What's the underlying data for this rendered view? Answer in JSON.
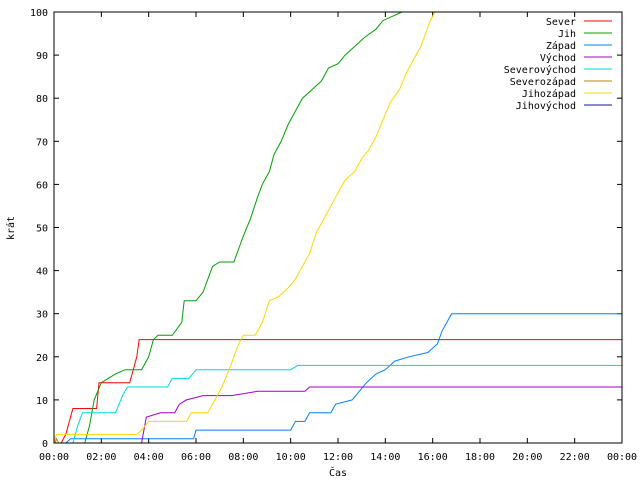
{
  "chart_data": {
    "type": "line",
    "title": "",
    "xlabel": "Čas",
    "ylabel": "krát",
    "xlim": [
      0,
      24
    ],
    "ylim": [
      0,
      100
    ],
    "x_ticks": [
      {
        "v": 0,
        "label": "00:00"
      },
      {
        "v": 2,
        "label": "02:00"
      },
      {
        "v": 4,
        "label": "04:00"
      },
      {
        "v": 6,
        "label": "06:00"
      },
      {
        "v": 8,
        "label": "08:00"
      },
      {
        "v": 10,
        "label": "10:00"
      },
      {
        "v": 12,
        "label": "12:00"
      },
      {
        "v": 14,
        "label": "14:00"
      },
      {
        "v": 16,
        "label": "16:00"
      },
      {
        "v": 18,
        "label": "18:00"
      },
      {
        "v": 20,
        "label": "20:00"
      },
      {
        "v": 22,
        "label": "22:00"
      },
      {
        "v": 24,
        "label": "00:00"
      }
    ],
    "y_ticks": [
      {
        "v": 0,
        "label": "0"
      },
      {
        "v": 10,
        "label": "10"
      },
      {
        "v": 20,
        "label": "20"
      },
      {
        "v": 30,
        "label": "30"
      },
      {
        "v": 40,
        "label": "40"
      },
      {
        "v": 50,
        "label": "50"
      },
      {
        "v": 60,
        "label": "60"
      },
      {
        "v": 70,
        "label": "70"
      },
      {
        "v": 80,
        "label": "80"
      },
      {
        "v": 90,
        "label": "90"
      },
      {
        "v": 100,
        "label": "100"
      }
    ],
    "grid": false,
    "legend_position": "top-right",
    "series": [
      {
        "name": "Sever",
        "color": "#ff0000",
        "points": [
          [
            0,
            0
          ],
          [
            0.3,
            0
          ],
          [
            0.5,
            2
          ],
          [
            0.8,
            8
          ],
          [
            1.8,
            8
          ],
          [
            1.9,
            14
          ],
          [
            3.2,
            14
          ],
          [
            3.5,
            20
          ],
          [
            3.6,
            24
          ],
          [
            24,
            24
          ]
        ]
      },
      {
        "name": "Jih",
        "color": "#00a000",
        "points": [
          [
            0,
            0
          ],
          [
            1.3,
            0
          ],
          [
            1.5,
            4
          ],
          [
            1.7,
            10
          ],
          [
            2.0,
            14
          ],
          [
            2.6,
            16
          ],
          [
            3.0,
            17
          ],
          [
            3.7,
            17
          ],
          [
            4.0,
            20
          ],
          [
            4.2,
            24
          ],
          [
            4.4,
            25
          ],
          [
            5.0,
            25
          ],
          [
            5.4,
            28
          ],
          [
            5.5,
            33
          ],
          [
            6.0,
            33
          ],
          [
            6.3,
            35
          ],
          [
            6.5,
            38
          ],
          [
            6.7,
            41
          ],
          [
            7.0,
            42
          ],
          [
            7.6,
            42
          ],
          [
            7.8,
            45
          ],
          [
            8.0,
            48
          ],
          [
            8.3,
            52
          ],
          [
            8.6,
            57
          ],
          [
            8.8,
            60
          ],
          [
            9.1,
            63
          ],
          [
            9.3,
            67
          ],
          [
            9.6,
            70
          ],
          [
            9.9,
            74
          ],
          [
            10.2,
            77
          ],
          [
            10.5,
            80
          ],
          [
            10.9,
            82
          ],
          [
            11.3,
            84
          ],
          [
            11.6,
            87
          ],
          [
            12.0,
            88
          ],
          [
            12.3,
            90
          ],
          [
            12.7,
            92
          ],
          [
            13.1,
            94
          ],
          [
            13.6,
            96
          ],
          [
            13.9,
            98
          ],
          [
            14.3,
            99
          ],
          [
            14.7,
            100
          ],
          [
            24,
            100
          ]
        ]
      },
      {
        "name": "Západ",
        "color": "#0080ff",
        "points": [
          [
            0,
            0
          ],
          [
            0.5,
            0
          ],
          [
            0.7,
            1
          ],
          [
            5.9,
            1
          ],
          [
            6.0,
            3
          ],
          [
            10.0,
            3
          ],
          [
            10.2,
            5
          ],
          [
            10.6,
            5
          ],
          [
            10.8,
            7
          ],
          [
            11.7,
            7
          ],
          [
            11.9,
            9
          ],
          [
            12.6,
            10
          ],
          [
            12.9,
            12
          ],
          [
            13.2,
            14
          ],
          [
            13.6,
            16
          ],
          [
            14.0,
            17
          ],
          [
            14.4,
            19
          ],
          [
            15.0,
            20
          ],
          [
            15.8,
            21
          ],
          [
            16.2,
            23
          ],
          [
            16.4,
            26
          ],
          [
            16.6,
            28
          ],
          [
            16.8,
            30
          ],
          [
            24,
            30
          ]
        ]
      },
      {
        "name": "Východ",
        "color": "#a000c0",
        "points": [
          [
            0,
            0
          ],
          [
            3.7,
            0
          ],
          [
            3.9,
            6
          ],
          [
            4.5,
            7
          ],
          [
            5.1,
            7
          ],
          [
            5.3,
            9
          ],
          [
            5.6,
            10
          ],
          [
            6.3,
            11
          ],
          [
            7.5,
            11
          ],
          [
            8.6,
            12
          ],
          [
            10.6,
            12
          ],
          [
            10.8,
            13
          ],
          [
            24,
            13
          ]
        ]
      },
      {
        "name": "Severovýchod",
        "color": "#00d8d8",
        "points": [
          [
            0,
            0
          ],
          [
            0.8,
            0
          ],
          [
            1.0,
            4
          ],
          [
            1.2,
            7
          ],
          [
            2.6,
            7
          ],
          [
            2.9,
            11
          ],
          [
            3.1,
            13
          ],
          [
            4.8,
            13
          ],
          [
            5.0,
            15
          ],
          [
            5.7,
            15
          ],
          [
            6.0,
            17
          ],
          [
            10.0,
            17
          ],
          [
            10.3,
            18
          ],
          [
            24,
            18
          ]
        ]
      },
      {
        "name": "Severozápad",
        "color": "#b8860b",
        "points": [
          [
            0,
            0
          ],
          [
            0.05,
            0
          ],
          [
            0.1,
            1
          ],
          [
            0.2,
            0
          ]
        ]
      },
      {
        "name": "Jihozápad",
        "color": "#ffd700",
        "points": [
          [
            0,
            0
          ],
          [
            0.1,
            2
          ],
          [
            3.5,
            2
          ],
          [
            3.7,
            3
          ],
          [
            4.0,
            5
          ],
          [
            5.6,
            5
          ],
          [
            5.8,
            7
          ],
          [
            6.5,
            7
          ],
          [
            6.8,
            10
          ],
          [
            7.1,
            13
          ],
          [
            7.4,
            17
          ],
          [
            7.6,
            20
          ],
          [
            7.8,
            23
          ],
          [
            8.0,
            25
          ],
          [
            8.5,
            25
          ],
          [
            8.8,
            28
          ],
          [
            9.1,
            33
          ],
          [
            9.5,
            34
          ],
          [
            9.9,
            36
          ],
          [
            10.2,
            38
          ],
          [
            10.5,
            41
          ],
          [
            10.8,
            44
          ],
          [
            11.1,
            49
          ],
          [
            11.4,
            52
          ],
          [
            11.7,
            55
          ],
          [
            12.0,
            58
          ],
          [
            12.3,
            61
          ],
          [
            12.7,
            63
          ],
          [
            13.0,
            66
          ],
          [
            13.3,
            68
          ],
          [
            13.6,
            71
          ],
          [
            13.9,
            75
          ],
          [
            14.2,
            79
          ],
          [
            14.6,
            82
          ],
          [
            14.9,
            86
          ],
          [
            15.2,
            89
          ],
          [
            15.5,
            92
          ],
          [
            15.7,
            95
          ],
          [
            15.9,
            98
          ],
          [
            16.1,
            100
          ],
          [
            24,
            100
          ]
        ]
      },
      {
        "name": "Jihovýchod",
        "color": "#1010a0",
        "points": []
      }
    ]
  }
}
